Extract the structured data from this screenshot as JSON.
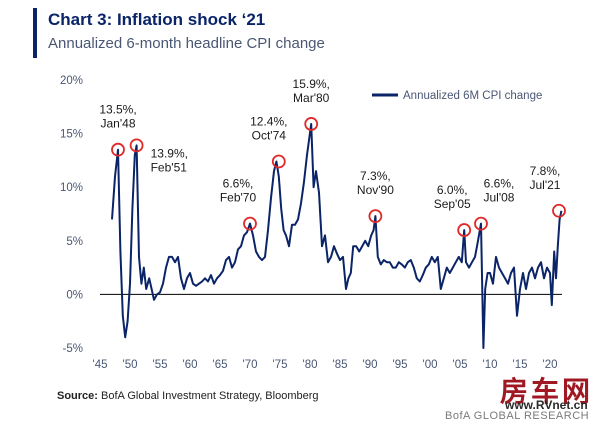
{
  "header": {
    "title": "Chart 3: Inflation shock ‘21",
    "subtitle": "Annualized 6-month headline CPI change"
  },
  "source": {
    "label": "Source:",
    "text": "BofA Global Investment Strategy, Bloomberg"
  },
  "footer": {
    "watermark": "房车网",
    "watermark_url": "www.RVnet.cn",
    "brand": "BofA GLOBAL RESEARCH"
  },
  "chart_data": {
    "type": "line",
    "title": "Chart 3: Inflation shock ‘21",
    "subtitle": "Annualized 6-month headline CPI change",
    "xlabel": "",
    "ylabel": "",
    "xlim": [
      1945,
      2022
    ],
    "ylim": [
      -5,
      20
    ],
    "x_ticks": [
      "'45",
      "'50",
      "'55",
      "'60",
      "'65",
      "'70",
      "'75",
      "'80",
      "'85",
      "'90",
      "'95",
      "'00",
      "'05",
      "'10",
      "'15",
      "'20"
    ],
    "y_ticks": [
      "-5%",
      "0%",
      "5%",
      "10%",
      "15%",
      "20%"
    ],
    "grid": false,
    "legend": {
      "position": "top-right",
      "entries": [
        "Annualized 6M CPI change"
      ]
    },
    "colors": {
      "series": "#0a2467",
      "highlight": "#e02a2a"
    },
    "series": [
      {
        "name": "Annualized 6M CPI change",
        "x": [
          1947.0,
          1947.5,
          1948.0,
          1948.4,
          1948.8,
          1949.2,
          1949.6,
          1950.0,
          1950.4,
          1950.8,
          1951.1,
          1951.5,
          1951.9,
          1952.3,
          1952.7,
          1953.2,
          1953.6,
          1954.0,
          1954.5,
          1955.0,
          1955.5,
          1956.0,
          1956.5,
          1957.0,
          1957.5,
          1958.0,
          1958.5,
          1959.0,
          1959.5,
          1960.0,
          1960.5,
          1961.0,
          1961.5,
          1962.0,
          1962.5,
          1963.0,
          1963.5,
          1964.0,
          1964.5,
          1965.0,
          1965.5,
          1966.0,
          1966.5,
          1967.0,
          1967.5,
          1968.0,
          1968.5,
          1969.0,
          1969.5,
          1970.0,
          1970.5,
          1971.0,
          1971.5,
          1972.0,
          1972.5,
          1973.0,
          1973.5,
          1974.0,
          1974.4,
          1974.8,
          1975.2,
          1975.6,
          1976.0,
          1976.5,
          1977.0,
          1977.5,
          1978.0,
          1978.5,
          1979.0,
          1979.5,
          1980.2,
          1980.6,
          1981.0,
          1981.5,
          1982.0,
          1982.5,
          1983.0,
          1983.5,
          1984.0,
          1984.5,
          1985.0,
          1985.5,
          1986.0,
          1986.4,
          1986.8,
          1987.2,
          1987.7,
          1988.2,
          1988.7,
          1989.2,
          1989.7,
          1990.2,
          1990.6,
          1990.9,
          1991.3,
          1991.8,
          1992.3,
          1992.8,
          1993.3,
          1993.8,
          1994.3,
          1994.8,
          1995.3,
          1995.8,
          1996.3,
          1996.8,
          1997.3,
          1997.8,
          1998.3,
          1998.8,
          1999.3,
          1999.8,
          2000.3,
          2000.8,
          2001.3,
          2001.8,
          2002.3,
          2002.8,
          2003.3,
          2003.8,
          2004.3,
          2004.8,
          2005.3,
          2005.7,
          2006.0,
          2006.5,
          2007.0,
          2007.5,
          2008.0,
          2008.5,
          2008.9,
          2009.2,
          2009.6,
          2010.0,
          2010.5,
          2011.0,
          2011.5,
          2012.0,
          2012.5,
          2013.0,
          2013.5,
          2014.0,
          2014.5,
          2015.0,
          2015.5,
          2016.0,
          2016.5,
          2017.0,
          2017.5,
          2018.0,
          2018.5,
          2019.0,
          2019.5,
          2020.0,
          2020.3,
          2020.7,
          2021.0,
          2021.3,
          2021.6,
          2021.9
        ],
        "values": [
          7.0,
          11.0,
          13.5,
          4.0,
          -2.0,
          -4.0,
          -2.5,
          1.0,
          8.0,
          13.0,
          13.9,
          3.5,
          1.0,
          2.5,
          0.5,
          1.5,
          0.5,
          -0.5,
          0.0,
          0.2,
          1.0,
          2.5,
          3.5,
          3.5,
          3.0,
          3.5,
          1.5,
          0.5,
          1.5,
          2.0,
          1.0,
          0.8,
          1.0,
          1.2,
          1.5,
          1.2,
          1.8,
          1.0,
          1.5,
          1.8,
          2.2,
          3.2,
          3.5,
          2.5,
          3.0,
          4.2,
          4.5,
          5.5,
          5.8,
          6.6,
          5.5,
          4.0,
          3.5,
          3.2,
          3.5,
          6.0,
          9.0,
          11.5,
          12.4,
          11.0,
          8.0,
          6.0,
          5.5,
          4.5,
          6.5,
          6.5,
          7.0,
          8.5,
          10.5,
          13.0,
          15.9,
          10.0,
          11.5,
          9.5,
          4.5,
          5.5,
          3.0,
          3.5,
          4.5,
          3.8,
          3.2,
          3.5,
          0.5,
          1.5,
          2.0,
          4.5,
          4.5,
          4.0,
          4.5,
          5.0,
          4.5,
          5.5,
          6.0,
          7.3,
          3.5,
          2.8,
          3.2,
          3.0,
          3.0,
          2.5,
          2.5,
          3.0,
          2.8,
          2.5,
          3.0,
          3.2,
          2.5,
          1.5,
          1.2,
          1.8,
          2.5,
          2.8,
          3.5,
          3.0,
          3.5,
          0.5,
          1.5,
          2.5,
          2.0,
          2.5,
          3.0,
          3.5,
          3.0,
          6.0,
          3.0,
          2.5,
          3.0,
          3.5,
          5.0,
          6.6,
          -5.0,
          0.5,
          2.0,
          2.0,
          1.0,
          3.5,
          2.5,
          2.0,
          1.5,
          1.0,
          2.0,
          2.5,
          -2.0,
          0.5,
          2.0,
          0.5,
          2.0,
          2.5,
          1.5,
          2.5,
          3.0,
          1.5,
          2.5,
          2.0,
          -1.0,
          4.0,
          1.5,
          4.5,
          7.0,
          7.8
        ]
      }
    ],
    "annotations": [
      {
        "x": 1948.0,
        "y": 13.5,
        "value": "13.5%,",
        "date": "Jan'48"
      },
      {
        "x": 1951.1,
        "y": 13.9,
        "value": "13.9%,",
        "date": "Feb'51"
      },
      {
        "x": 1970.0,
        "y": 6.6,
        "value": "6.6%,",
        "date": "Feb'70"
      },
      {
        "x": 1974.8,
        "y": 12.4,
        "value": "12.4%,",
        "date": "Oct'74"
      },
      {
        "x": 1980.2,
        "y": 15.9,
        "value": "15.9%,",
        "date": "Mar'80"
      },
      {
        "x": 1990.9,
        "y": 7.3,
        "value": "7.3%,",
        "date": "Nov'90"
      },
      {
        "x": 2005.7,
        "y": 6.0,
        "value": "6.0%,",
        "date": "Sep'05"
      },
      {
        "x": 2008.5,
        "y": 6.6,
        "value": "6.6%,",
        "date": "Jul'08"
      },
      {
        "x": 2021.5,
        "y": 7.8,
        "value": "7.8%,",
        "date": "Jul'21"
      }
    ]
  }
}
